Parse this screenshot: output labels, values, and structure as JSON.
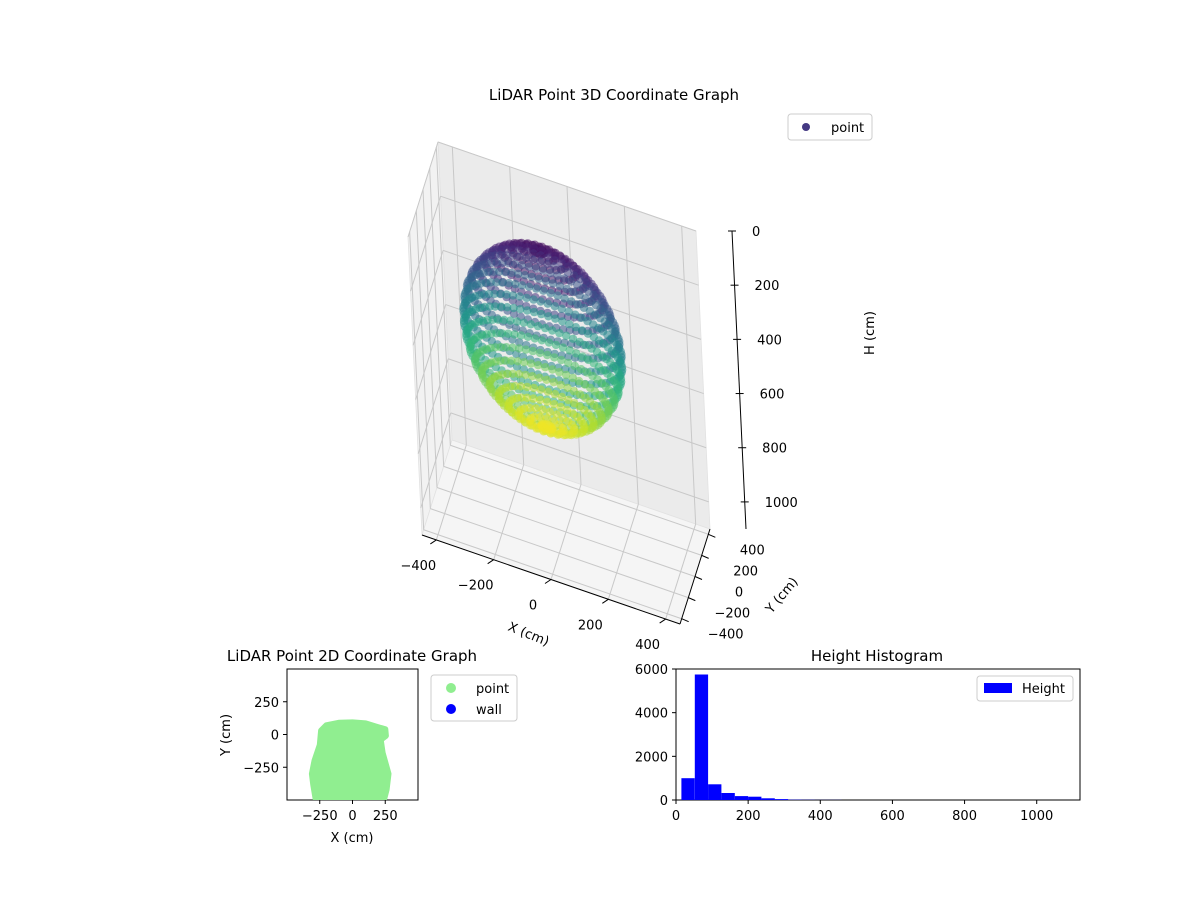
{
  "chart_data": [
    {
      "type": "scatter",
      "projection": "3d",
      "title": "LiDAR Point 3D Coordinate Graph",
      "xlabel": "X (cm)",
      "ylabel": "Y (cm)",
      "zlabel": "H (cm)",
      "xlim": [
        -450,
        450
      ],
      "ylim": [
        -450,
        450
      ],
      "zlim": [
        1100,
        0
      ],
      "xticks": [
        "−400",
        "−200",
        "0",
        "200",
        "400"
      ],
      "yticks": [
        "−400",
        "−200",
        "0",
        "200",
        "400"
      ],
      "zticks": [
        "0",
        "200",
        "400",
        "600",
        "800",
        "1000"
      ],
      "colormap": "viridis",
      "grid": true,
      "legend": {
        "position": "top-right",
        "entries": [
          {
            "name": "point",
            "color": "#443983"
          }
        ]
      },
      "shape": {
        "description_of_shape": "ellipsoidal shell of scan rings",
        "x_range": [
          -300,
          250
        ],
        "y_range": [
          -450,
          80
        ],
        "h_range": [
          0,
          650
        ]
      }
    },
    {
      "type": "scatter",
      "title": "LiDAR Point 2D Coordinate Graph",
      "xlabel": "X (cm)",
      "ylabel": "Y (cm)",
      "xlim": [
        -500,
        500
      ],
      "ylim": [
        -500,
        500
      ],
      "xticks": [
        "−250",
        "0",
        "250"
      ],
      "yticks": [
        "250",
        "0",
        "−250"
      ],
      "legend": {
        "position": "outside-right",
        "entries": [
          {
            "name": "point",
            "color": "#90ee90"
          },
          {
            "name": "wall",
            "color": "#0000ff"
          }
        ]
      },
      "region": {
        "x_range": [
          -310,
          260
        ],
        "y_range": [
          -500,
          90
        ]
      }
    },
    {
      "type": "bar",
      "subtype": "histogram",
      "title": "Height Histogram",
      "xlim": [
        0,
        1120
      ],
      "ylim": [
        0,
        6000
      ],
      "xticks": [
        "0",
        "200",
        "400",
        "600",
        "800",
        "1000"
      ],
      "yticks": [
        "0",
        "2000",
        "4000",
        "6000"
      ],
      "bin_width": 37,
      "bin_start": 15,
      "values": [
        1000,
        5750,
        720,
        320,
        180,
        150,
        80,
        40,
        15,
        8,
        5,
        3,
        2,
        1,
        1,
        1,
        0,
        0,
        0,
        0,
        0,
        0,
        0,
        0,
        0,
        0,
        0,
        0
      ],
      "color": "#0000ff",
      "legend": {
        "position": "top-right",
        "entries": [
          {
            "name": "Height",
            "color": "#0000ff"
          }
        ]
      }
    }
  ]
}
